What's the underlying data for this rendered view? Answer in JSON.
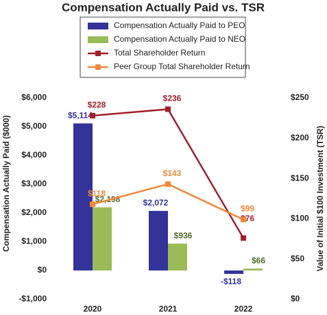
{
  "chart_data": {
    "type": "bar",
    "title": "Compensation Actually Paid vs. TSR",
    "categories": [
      "2020",
      "2021",
      "2022"
    ],
    "y_label": "Compensation Actually Paid ($000)",
    "y2_label": "Value of Initial $100 Investment (TSR)",
    "ylim": [
      -1000,
      6000
    ],
    "yticks": [
      {
        "value": -1000,
        "label": "-$1,000"
      },
      {
        "value": 0,
        "label": "$0"
      },
      {
        "value": 1000,
        "label": "$1,000"
      },
      {
        "value": 2000,
        "label": "$2,000"
      },
      {
        "value": 3000,
        "label": "$3,000"
      },
      {
        "value": 4000,
        "label": "$4,000"
      },
      {
        "value": 5000,
        "label": "$5,000"
      },
      {
        "value": 6000,
        "label": "$6,000"
      }
    ],
    "y2lim": [
      0,
      250
    ],
    "y2ticks": [
      {
        "value": 0,
        "label": "$0"
      },
      {
        "value": 50,
        "label": "$50"
      },
      {
        "value": 100,
        "label": "$100"
      },
      {
        "value": 150,
        "label": "$150"
      },
      {
        "value": 200,
        "label": "$200"
      },
      {
        "value": 250,
        "label": "$250"
      }
    ],
    "grid": false,
    "legend": "top",
    "series": [
      {
        "name": "Compensation Actually Paid to PEO",
        "type": "bar",
        "color": "#333399",
        "label_color": "#333399",
        "values": [
          5114,
          2072,
          -118
        ],
        "value_labels": [
          "$5,114",
          "$2,072",
          "-$118"
        ]
      },
      {
        "name": "Compensation Actually Paid to NEO",
        "type": "bar",
        "color": "#9bbb59",
        "label_color": "#4f6b2a",
        "values": [
          2198,
          936,
          66
        ],
        "value_labels": [
          "$2,198",
          "$936",
          "$66"
        ]
      },
      {
        "name": "Total Shareholder Return",
        "type": "line",
        "axis": "y2",
        "color": "#a0202c",
        "label_color": "#a0202c",
        "values": [
          228,
          236,
          76
        ],
        "value_labels": [
          "$228",
          "$236",
          "$76"
        ]
      },
      {
        "name": "Peer Group Total Shareholder Return",
        "type": "line",
        "axis": "y2",
        "color": "#f0883a",
        "label_color": "#f0883a",
        "values": [
          118,
          143,
          99
        ],
        "value_labels": [
          "$118",
          "$143",
          "$99"
        ]
      }
    ]
  }
}
